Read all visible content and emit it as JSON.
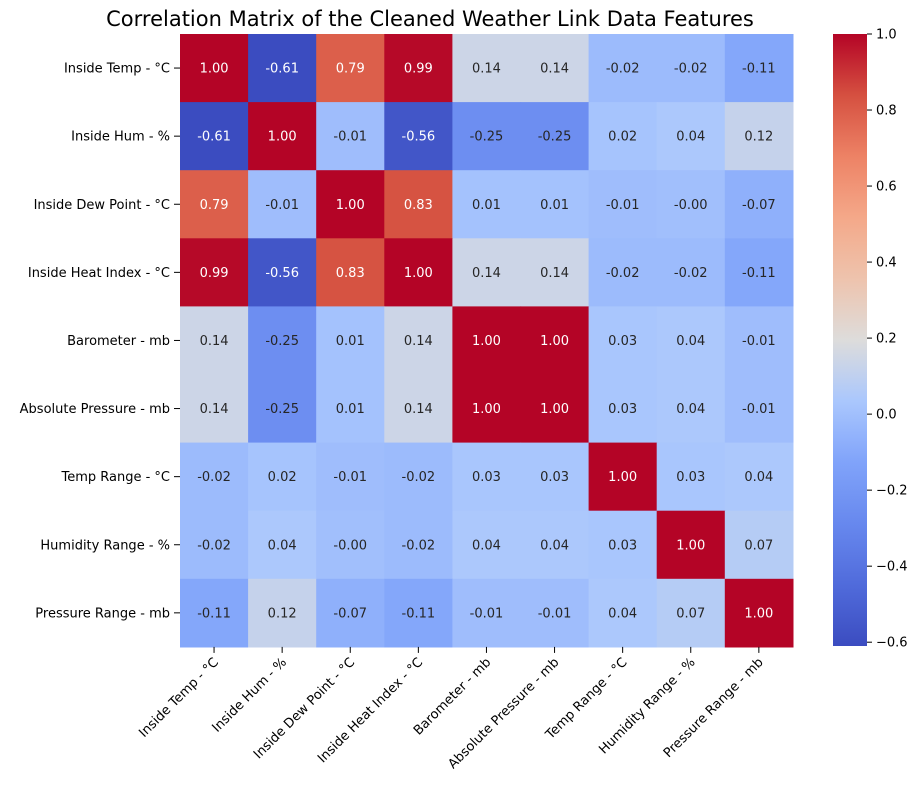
{
  "chart_data": {
    "type": "heatmap",
    "title": "Correlation Matrix of the Cleaned Weather Link Data Features",
    "xlabel": "",
    "ylabel": "",
    "labels": [
      "Inside Temp - °C",
      "Inside Hum - %",
      "Inside Dew Point - °C",
      "Inside Heat Index - °C",
      "Barometer - mb",
      "Absolute Pressure - mb",
      "Temp Range - °C",
      "Humidity Range - %",
      "Pressure Range - mb"
    ],
    "values": [
      [
        1.0,
        -0.61,
        0.79,
        0.99,
        0.14,
        0.14,
        -0.02,
        -0.02,
        -0.11
      ],
      [
        -0.61,
        1.0,
        -0.01,
        -0.56,
        -0.25,
        -0.25,
        0.02,
        0.04,
        0.12
      ],
      [
        0.79,
        -0.01,
        1.0,
        0.83,
        0.01,
        0.01,
        -0.01,
        -0.0,
        -0.07
      ],
      [
        0.99,
        -0.56,
        0.83,
        1.0,
        0.14,
        0.14,
        -0.02,
        -0.02,
        -0.11
      ],
      [
        0.14,
        -0.25,
        0.01,
        0.14,
        1.0,
        1.0,
        0.03,
        0.04,
        -0.01
      ],
      [
        0.14,
        -0.25,
        0.01,
        0.14,
        1.0,
        1.0,
        0.03,
        0.04,
        -0.01
      ],
      [
        -0.02,
        0.02,
        -0.01,
        -0.02,
        0.03,
        0.03,
        1.0,
        0.03,
        0.04
      ],
      [
        -0.02,
        0.04,
        -0.0,
        -0.02,
        0.04,
        0.04,
        0.03,
        1.0,
        0.07
      ],
      [
        -0.11,
        0.12,
        -0.07,
        -0.11,
        -0.01,
        -0.01,
        0.04,
        0.07,
        1.0
      ]
    ],
    "colormap": "coolwarm",
    "color_range": [
      -0.61,
      1.0
    ],
    "colorbar_ticks": [
      1.0,
      0.8,
      0.6,
      0.4,
      0.2,
      0.0,
      -0.2,
      -0.4,
      -0.6
    ],
    "colorbar_tick_labels": [
      "1.0",
      "0.8",
      "0.6",
      "0.4",
      "0.2",
      "0.0",
      "−0.2",
      "−0.4",
      "−0.6"
    ],
    "annotation_format": "0.00",
    "colors": {
      "low": "#3b4cc0",
      "mid": "#dddddd",
      "high": "#b40426"
    }
  }
}
